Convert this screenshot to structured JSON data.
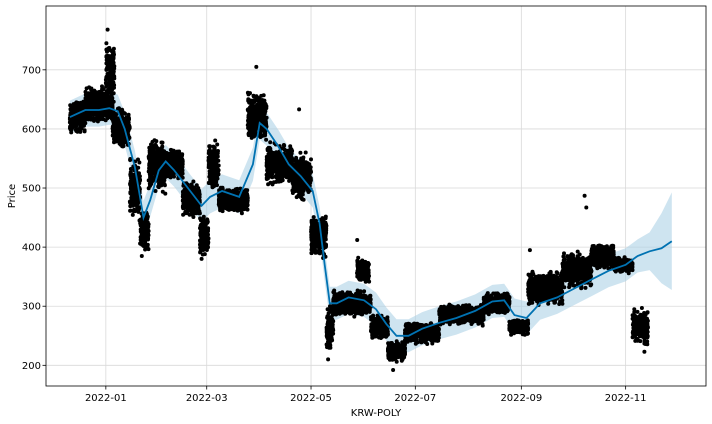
{
  "chart_data": {
    "type": "scatter",
    "xlabel": "KRW-POLY",
    "ylabel": "Price",
    "xlim": [
      "2021-11-27",
      "2022-12-18"
    ],
    "ylim": [
      165,
      808
    ],
    "grid": true,
    "x_ticks": [
      {
        "date": "2022-01-01",
        "label": "2022-01"
      },
      {
        "date": "2022-03-01",
        "label": "2022-03"
      },
      {
        "date": "2022-05-01",
        "label": "2022-05"
      },
      {
        "date": "2022-07-01",
        "label": "2022-07"
      },
      {
        "date": "2022-09-01",
        "label": "2022-09"
      },
      {
        "date": "2022-11-01",
        "label": "2022-11"
      }
    ],
    "y_ticks": [
      200,
      300,
      400,
      500,
      600,
      700
    ],
    "colors": {
      "observed": "#000000",
      "forecast": "#0072b2",
      "interval": "#a6cee3"
    },
    "series": [
      {
        "type": "forecast",
        "points": [
          [
            "2021-12-11",
            620
          ],
          [
            "2021-12-20",
            632
          ],
          [
            "2021-12-28",
            632
          ],
          [
            "2022-01-03",
            635
          ],
          [
            "2022-01-08",
            630
          ],
          [
            "2022-01-12",
            600
          ],
          [
            "2022-01-18",
            535
          ],
          [
            "2022-01-21",
            485
          ],
          [
            "2022-01-23",
            450
          ],
          [
            "2022-01-27",
            480
          ],
          [
            "2022-02-01",
            530
          ],
          [
            "2022-02-05",
            545
          ],
          [
            "2022-02-10",
            530
          ],
          [
            "2022-02-18",
            500
          ],
          [
            "2022-02-26",
            470
          ],
          [
            "2022-03-03",
            485
          ],
          [
            "2022-03-10",
            495
          ],
          [
            "2022-03-20",
            485
          ],
          [
            "2022-03-28",
            540
          ],
          [
            "2022-04-01",
            610
          ],
          [
            "2022-04-05",
            600
          ],
          [
            "2022-04-12",
            570
          ],
          [
            "2022-04-18",
            540
          ],
          [
            "2022-04-25",
            520
          ],
          [
            "2022-05-02",
            495
          ],
          [
            "2022-05-06",
            440
          ],
          [
            "2022-05-09",
            370
          ],
          [
            "2022-05-12",
            305
          ],
          [
            "2022-05-16",
            305
          ],
          [
            "2022-05-23",
            315
          ],
          [
            "2022-06-01",
            310
          ],
          [
            "2022-06-08",
            295
          ],
          [
            "2022-06-14",
            270
          ],
          [
            "2022-06-20",
            250
          ],
          [
            "2022-06-27",
            250
          ],
          [
            "2022-07-05",
            262
          ],
          [
            "2022-07-15",
            272
          ],
          [
            "2022-07-25",
            280
          ],
          [
            "2022-08-05",
            292
          ],
          [
            "2022-08-15",
            308
          ],
          [
            "2022-08-22",
            310
          ],
          [
            "2022-08-28",
            285
          ],
          [
            "2022-09-04",
            280
          ],
          [
            "2022-09-12",
            305
          ],
          [
            "2022-09-22",
            315
          ],
          [
            "2022-10-02",
            330
          ],
          [
            "2022-10-12",
            345
          ],
          [
            "2022-10-22",
            360
          ],
          [
            "2022-11-01",
            370
          ],
          [
            "2022-11-08",
            385
          ],
          [
            "2022-11-15",
            393
          ],
          [
            "2022-11-22",
            398
          ],
          [
            "2022-11-28",
            410
          ]
        ]
      },
      {
        "type": "observed",
        "clusters": [
          {
            "start": "2021-12-11",
            "end": "2021-12-20",
            "center": 620,
            "spread": 60
          },
          {
            "start": "2021-12-20",
            "end": "2022-01-05",
            "center": 640,
            "spread": 70
          },
          {
            "start": "2022-01-01",
            "end": "2022-01-06",
            "center": 700,
            "spread": 130
          },
          {
            "start": "2022-01-05",
            "end": "2022-01-15",
            "center": 600,
            "spread": 80
          },
          {
            "start": "2022-01-15",
            "end": "2022-01-21",
            "center": 500,
            "spread": 120
          },
          {
            "start": "2022-01-21",
            "end": "2022-01-26",
            "center": 430,
            "spread": 90
          },
          {
            "start": "2022-01-26",
            "end": "2022-02-05",
            "center": 540,
            "spread": 110
          },
          {
            "start": "2022-02-05",
            "end": "2022-02-15",
            "center": 540,
            "spread": 60
          },
          {
            "start": "2022-02-15",
            "end": "2022-02-25",
            "center": 480,
            "spread": 70
          },
          {
            "start": "2022-02-25",
            "end": "2022-03-02",
            "center": 420,
            "spread": 80
          },
          {
            "start": "2022-03-02",
            "end": "2022-03-08",
            "center": 540,
            "spread": 100
          },
          {
            "start": "2022-03-08",
            "end": "2022-03-25",
            "center": 480,
            "spread": 50
          },
          {
            "start": "2022-03-25",
            "end": "2022-04-05",
            "center": 620,
            "spread": 100
          },
          {
            "start": "2022-04-05",
            "end": "2022-04-20",
            "center": 540,
            "spread": 80
          },
          {
            "start": "2022-04-20",
            "end": "2022-05-01",
            "center": 520,
            "spread": 90
          },
          {
            "start": "2022-05-01",
            "end": "2022-05-10",
            "center": 420,
            "spread": 90
          },
          {
            "start": "2022-05-10",
            "end": "2022-05-14",
            "center": 260,
            "spread": 90
          },
          {
            "start": "2022-05-14",
            "end": "2022-06-05",
            "center": 305,
            "spread": 50
          },
          {
            "start": "2022-05-28",
            "end": "2022-06-04",
            "center": 360,
            "spread": 50
          },
          {
            "start": "2022-06-05",
            "end": "2022-06-15",
            "center": 265,
            "spread": 50
          },
          {
            "start": "2022-06-15",
            "end": "2022-06-25",
            "center": 225,
            "spread": 40
          },
          {
            "start": "2022-06-25",
            "end": "2022-07-15",
            "center": 255,
            "spread": 40
          },
          {
            "start": "2022-07-15",
            "end": "2022-08-10",
            "center": 285,
            "spread": 40
          },
          {
            "start": "2022-08-10",
            "end": "2022-08-25",
            "center": 305,
            "spread": 40
          },
          {
            "start": "2022-08-25",
            "end": "2022-09-05",
            "center": 265,
            "spread": 30
          },
          {
            "start": "2022-09-05",
            "end": "2022-09-25",
            "center": 330,
            "spread": 70
          },
          {
            "start": "2022-09-25",
            "end": "2022-10-12",
            "center": 360,
            "spread": 70
          },
          {
            "start": "2022-10-12",
            "end": "2022-10-25",
            "center": 385,
            "spread": 50
          },
          {
            "start": "2022-10-25",
            "end": "2022-11-05",
            "center": 370,
            "spread": 30
          },
          {
            "start": "2022-11-05",
            "end": "2022-11-14",
            "center": 265,
            "spread": 70
          }
        ],
        "outliers": [
          [
            "2022-01-02",
            768
          ],
          [
            "2022-03-30",
            705
          ],
          [
            "2022-04-24",
            633
          ],
          [
            "2022-05-28",
            412
          ],
          [
            "2022-09-06",
            395
          ],
          [
            "2022-10-08",
            487
          ],
          [
            "2022-10-09",
            467
          ],
          [
            "2022-06-18",
            192
          ],
          [
            "2022-11-12",
            223
          ],
          [
            "2022-01-22",
            385
          ],
          [
            "2022-02-26",
            380
          ],
          [
            "2022-05-11",
            210
          ]
        ]
      }
    ]
  }
}
